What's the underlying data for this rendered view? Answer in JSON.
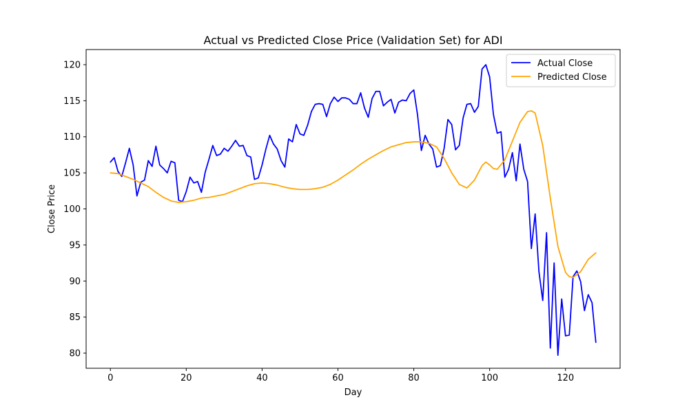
{
  "chart_data": {
    "type": "line",
    "title": "Actual vs Predicted Close Price (Validation Set) for ADI",
    "xlabel": "Day",
    "ylabel": "Close Price",
    "xlim": [
      -6.4,
      134.4
    ],
    "ylim": [
      77.9,
      122.1
    ],
    "xticks": [
      0,
      20,
      40,
      60,
      80,
      100,
      120
    ],
    "yticks": [
      80,
      85,
      90,
      95,
      100,
      105,
      110,
      115,
      120
    ],
    "grid": false,
    "legend_position": "top-right",
    "series": [
      {
        "name": "Actual Close",
        "color": "#0000ff",
        "x": [
          0,
          1,
          2,
          3,
          4,
          5,
          6,
          7,
          8,
          9,
          10,
          11,
          12,
          13,
          14,
          15,
          16,
          17,
          18,
          19,
          20,
          21,
          22,
          23,
          24,
          25,
          26,
          27,
          28,
          29,
          30,
          31,
          32,
          33,
          34,
          35,
          36,
          37,
          38,
          39,
          40,
          41,
          42,
          43,
          44,
          45,
          46,
          47,
          48,
          49,
          50,
          51,
          52,
          53,
          54,
          55,
          56,
          57,
          58,
          59,
          60,
          61,
          62,
          63,
          64,
          65,
          66,
          67,
          68,
          69,
          70,
          71,
          72,
          73,
          74,
          75,
          76,
          77,
          78,
          79,
          80,
          81,
          82,
          83,
          84,
          85,
          86,
          87,
          88,
          89,
          90,
          91,
          92,
          93,
          94,
          95,
          96,
          97,
          98,
          99,
          100,
          101,
          102,
          103,
          104,
          105,
          106,
          107,
          108,
          109,
          110,
          111,
          112,
          113,
          114,
          115,
          116,
          117,
          118,
          119,
          120,
          121,
          122,
          123,
          124,
          125,
          126,
          127,
          128
        ],
        "y": [
          106.5,
          107.1,
          105.2,
          104.5,
          106.4,
          108.4,
          106.1,
          101.8,
          103.7,
          104.0,
          106.7,
          105.9,
          108.7,
          106.1,
          105.6,
          105.0,
          106.6,
          106.4,
          101.2,
          101.0,
          102.4,
          104.4,
          103.6,
          103.8,
          102.3,
          105.1,
          106.9,
          108.8,
          107.4,
          107.6,
          108.4,
          108.0,
          108.7,
          109.5,
          108.7,
          108.8,
          107.4,
          107.2,
          104.1,
          104.3,
          106.1,
          108.3,
          110.2,
          109.0,
          108.3,
          106.7,
          105.8,
          109.7,
          109.3,
          111.7,
          110.4,
          110.2,
          111.6,
          113.5,
          114.5,
          114.6,
          114.5,
          112.8,
          114.6,
          115.5,
          114.9,
          115.4,
          115.4,
          115.2,
          114.6,
          114.6,
          116.1,
          114.0,
          112.7,
          115.3,
          116.3,
          116.3,
          114.3,
          114.8,
          115.2,
          113.3,
          114.8,
          115.1,
          115.0,
          116.0,
          116.5,
          113.0,
          108.1,
          110.2,
          109.0,
          108.3,
          105.8,
          106.0,
          108.4,
          112.4,
          111.7,
          108.2,
          108.8,
          112.6,
          114.5,
          114.6,
          113.4,
          114.2,
          119.4,
          120.0,
          118.3,
          113.1,
          110.5,
          110.7,
          104.4,
          105.5,
          107.8,
          103.9,
          109.0,
          105.5,
          103.8,
          94.5,
          99.3,
          91.3,
          87.3,
          96.7,
          80.7,
          92.5,
          79.7,
          87.5,
          82.4,
          82.5,
          90.6,
          91.4,
          89.9,
          85.9,
          88.1,
          87.0,
          81.5
        ]
      },
      {
        "name": "Predicted Close",
        "color": "#ffa500",
        "x": [
          0,
          2,
          4,
          6,
          8,
          10,
          12,
          14,
          16,
          18,
          20,
          22,
          24,
          26,
          28,
          30,
          32,
          34,
          36,
          38,
          40,
          42,
          44,
          46,
          48,
          50,
          52,
          54,
          56,
          58,
          60,
          62,
          64,
          66,
          68,
          70,
          72,
          74,
          76,
          78,
          80,
          82,
          84,
          86,
          88,
          90,
          92,
          94,
          96,
          98,
          99,
          100,
          101,
          102,
          104,
          106,
          108,
          110,
          111,
          112,
          114,
          116,
          118,
          120,
          121,
          122,
          124,
          126,
          128
        ],
        "y": [
          105.0,
          104.9,
          104.5,
          104.1,
          103.6,
          103.1,
          102.3,
          101.6,
          101.1,
          100.9,
          101.0,
          101.2,
          101.5,
          101.6,
          101.8,
          102.0,
          102.4,
          102.8,
          103.2,
          103.5,
          103.6,
          103.5,
          103.3,
          103.0,
          102.8,
          102.7,
          102.7,
          102.8,
          103.0,
          103.4,
          104.0,
          104.7,
          105.4,
          106.2,
          106.9,
          107.5,
          108.1,
          108.6,
          108.9,
          109.2,
          109.3,
          109.3,
          109.1,
          108.6,
          107.0,
          105.0,
          103.4,
          102.9,
          104.0,
          106.0,
          106.5,
          106.1,
          105.6,
          105.5,
          106.8,
          109.4,
          112.0,
          113.5,
          113.6,
          113.3,
          108.8,
          101.5,
          94.8,
          91.2,
          90.6,
          90.5,
          91.3,
          93.0,
          93.9
        ]
      }
    ]
  }
}
